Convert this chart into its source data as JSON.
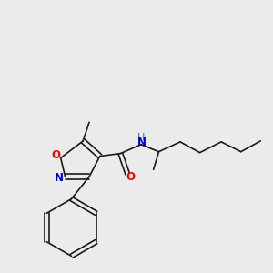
{
  "background_color": "#ebebeb",
  "bond_color": "#1a1a1a",
  "atom_colors": {
    "O": "#ff0000",
    "N": "#0000cd",
    "H": "#008b8b"
  },
  "fig_size": [
    3.0,
    3.0
  ],
  "dpi": 100
}
